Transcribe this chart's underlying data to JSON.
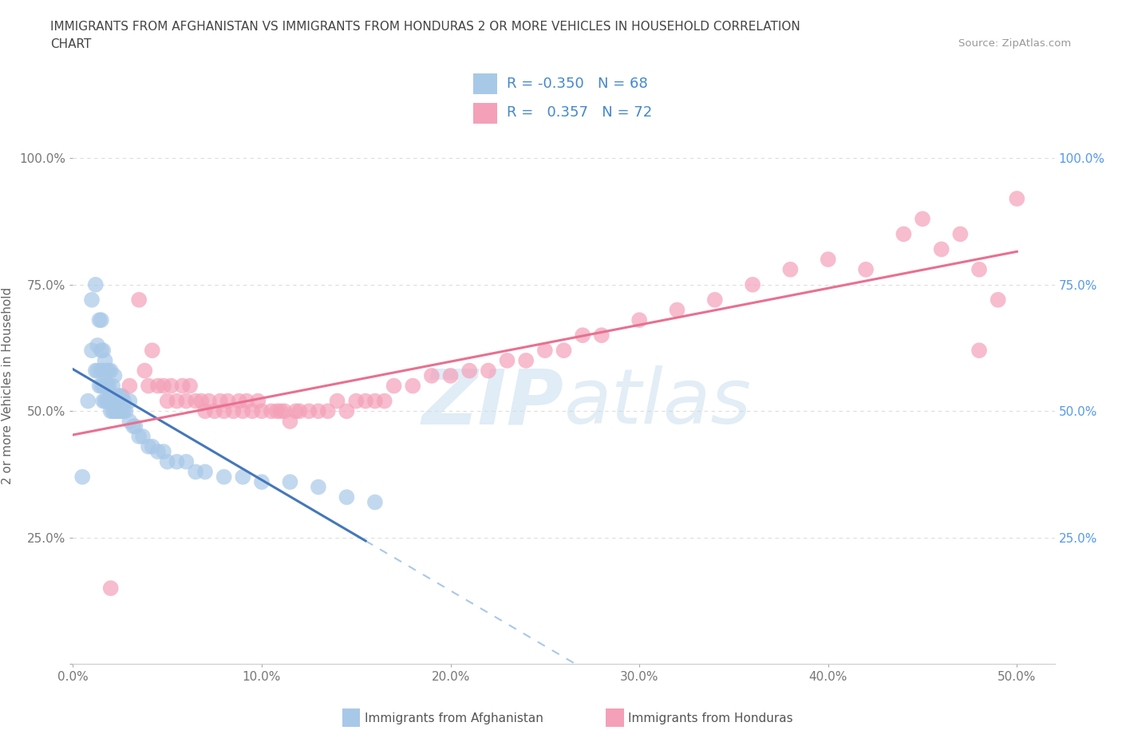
{
  "title_line1": "IMMIGRANTS FROM AFGHANISTAN VS IMMIGRANTS FROM HONDURAS 2 OR MORE VEHICLES IN HOUSEHOLD CORRELATION",
  "title_line2": "CHART",
  "source": "Source: ZipAtlas.com",
  "ylabel": "2 or more Vehicles in Household",
  "xlim": [
    0.0,
    0.52
  ],
  "ylim": [
    0.0,
    1.1
  ],
  "afghanistan_color": "#a8c8e8",
  "honduras_color": "#f4a0b8",
  "afghanistan_R": -0.35,
  "afghanistan_N": 68,
  "honduras_R": 0.357,
  "honduras_N": 72,
  "afghanistan_line_color": "#4477bb",
  "honduras_line_color": "#e87090",
  "background_color": "#ffffff",
  "grid_color": "#dddddd",
  "afghanistan_x": [
    0.005,
    0.008,
    0.01,
    0.01,
    0.012,
    0.012,
    0.013,
    0.013,
    0.014,
    0.014,
    0.015,
    0.015,
    0.015,
    0.015,
    0.016,
    0.016,
    0.016,
    0.016,
    0.017,
    0.017,
    0.017,
    0.018,
    0.018,
    0.018,
    0.019,
    0.019,
    0.019,
    0.02,
    0.02,
    0.02,
    0.021,
    0.021,
    0.022,
    0.022,
    0.022,
    0.023,
    0.023,
    0.024,
    0.024,
    0.025,
    0.025,
    0.026,
    0.026,
    0.027,
    0.027,
    0.028,
    0.03,
    0.03,
    0.032,
    0.033,
    0.035,
    0.037,
    0.04,
    0.042,
    0.045,
    0.048,
    0.05,
    0.055,
    0.06,
    0.065,
    0.07,
    0.08,
    0.09,
    0.1,
    0.115,
    0.13,
    0.145,
    0.16
  ],
  "afghanistan_y": [
    0.37,
    0.52,
    0.62,
    0.72,
    0.58,
    0.75,
    0.58,
    0.63,
    0.55,
    0.68,
    0.55,
    0.58,
    0.62,
    0.68,
    0.52,
    0.55,
    0.58,
    0.62,
    0.52,
    0.55,
    0.6,
    0.52,
    0.55,
    0.58,
    0.52,
    0.55,
    0.58,
    0.5,
    0.53,
    0.58,
    0.5,
    0.55,
    0.5,
    0.53,
    0.57,
    0.5,
    0.53,
    0.5,
    0.53,
    0.5,
    0.53,
    0.5,
    0.53,
    0.5,
    0.52,
    0.5,
    0.48,
    0.52,
    0.47,
    0.47,
    0.45,
    0.45,
    0.43,
    0.43,
    0.42,
    0.42,
    0.4,
    0.4,
    0.4,
    0.38,
    0.38,
    0.37,
    0.37,
    0.36,
    0.36,
    0.35,
    0.33,
    0.32
  ],
  "honduras_x": [
    0.02,
    0.03,
    0.035,
    0.038,
    0.04,
    0.042,
    0.045,
    0.048,
    0.05,
    0.052,
    0.055,
    0.058,
    0.06,
    0.062,
    0.065,
    0.068,
    0.07,
    0.072,
    0.075,
    0.078,
    0.08,
    0.082,
    0.085,
    0.088,
    0.09,
    0.092,
    0.095,
    0.098,
    0.1,
    0.105,
    0.108,
    0.11,
    0.112,
    0.115,
    0.118,
    0.12,
    0.125,
    0.13,
    0.135,
    0.14,
    0.145,
    0.15,
    0.155,
    0.16,
    0.165,
    0.17,
    0.18,
    0.19,
    0.2,
    0.21,
    0.22,
    0.23,
    0.24,
    0.25,
    0.26,
    0.27,
    0.28,
    0.3,
    0.32,
    0.34,
    0.36,
    0.38,
    0.4,
    0.42,
    0.44,
    0.45,
    0.46,
    0.47,
    0.48,
    0.49,
    0.5,
    0.48
  ],
  "honduras_y": [
    0.15,
    0.55,
    0.72,
    0.58,
    0.55,
    0.62,
    0.55,
    0.55,
    0.52,
    0.55,
    0.52,
    0.55,
    0.52,
    0.55,
    0.52,
    0.52,
    0.5,
    0.52,
    0.5,
    0.52,
    0.5,
    0.52,
    0.5,
    0.52,
    0.5,
    0.52,
    0.5,
    0.52,
    0.5,
    0.5,
    0.5,
    0.5,
    0.5,
    0.48,
    0.5,
    0.5,
    0.5,
    0.5,
    0.5,
    0.52,
    0.5,
    0.52,
    0.52,
    0.52,
    0.52,
    0.55,
    0.55,
    0.57,
    0.57,
    0.58,
    0.58,
    0.6,
    0.6,
    0.62,
    0.62,
    0.65,
    0.65,
    0.68,
    0.7,
    0.72,
    0.75,
    0.78,
    0.8,
    0.78,
    0.85,
    0.88,
    0.82,
    0.85,
    0.78,
    0.72,
    0.92,
    0.62
  ]
}
